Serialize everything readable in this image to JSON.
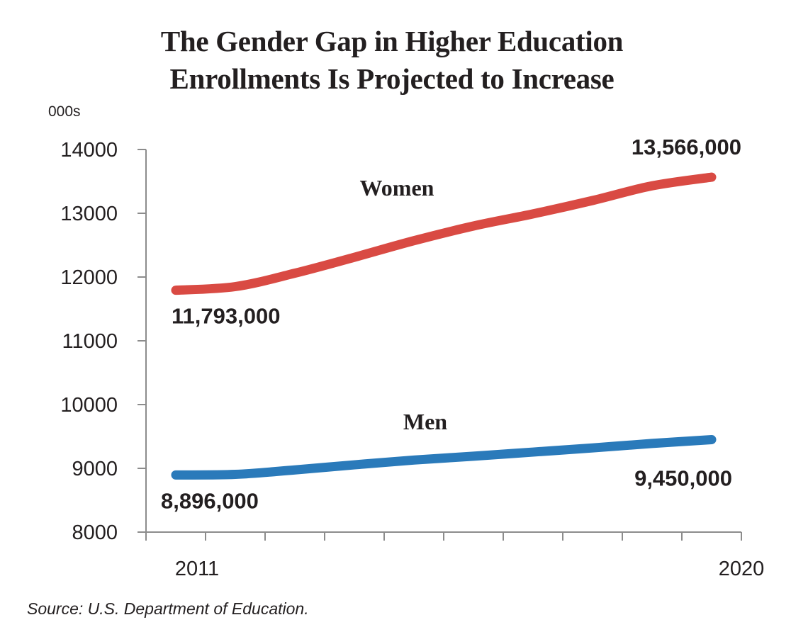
{
  "chart_data": {
    "type": "line",
    "title": "The Gender Gap in Higher Education Enrollments Is Projected to Increase",
    "title_lines": [
      "The Gender Gap in Higher Education",
      "Enrollments Is Projected to Increase"
    ],
    "units_label": "000s",
    "xlabel": "",
    "ylabel": "000s",
    "x": [
      2011,
      2012,
      2013,
      2014,
      2015,
      2016,
      2017,
      2018,
      2019,
      2020
    ],
    "x_tick_labels": [
      {
        "x": 2011,
        "label": "2011"
      },
      {
        "x": 2020,
        "label": "2020"
      }
    ],
    "ylim": [
      8000,
      14000
    ],
    "y_ticks": [
      8000,
      9000,
      10000,
      11000,
      12000,
      13000,
      14000
    ],
    "y_tick_labels": [
      "8000",
      "9000",
      "10000",
      "11000",
      "12000",
      "13000",
      "14000"
    ],
    "grid": false,
    "legend": "none (direct labels)",
    "series": [
      {
        "name": "Women",
        "color": "#d94a43",
        "values": [
          11793,
          11850,
          12060,
          12310,
          12570,
          12800,
          12990,
          13200,
          13430,
          13566
        ],
        "annotations": [
          {
            "x": 2011,
            "text": "11,793,000",
            "position": "below"
          },
          {
            "x": 2020,
            "text": "13,566,000",
            "position": "above"
          }
        ]
      },
      {
        "name": "Men",
        "color": "#2a7aba",
        "values": [
          8896,
          8905,
          8975,
          9055,
          9130,
          9190,
          9255,
          9320,
          9390,
          9450
        ],
        "annotations": [
          {
            "x": 2011,
            "text": "8,896,000",
            "position": "below"
          },
          {
            "x": 2020,
            "text": "9,450,000",
            "position": "below"
          }
        ]
      }
    ],
    "source": "Source: U.S. Department of Education.",
    "axis_color": "#8c8c8c"
  }
}
